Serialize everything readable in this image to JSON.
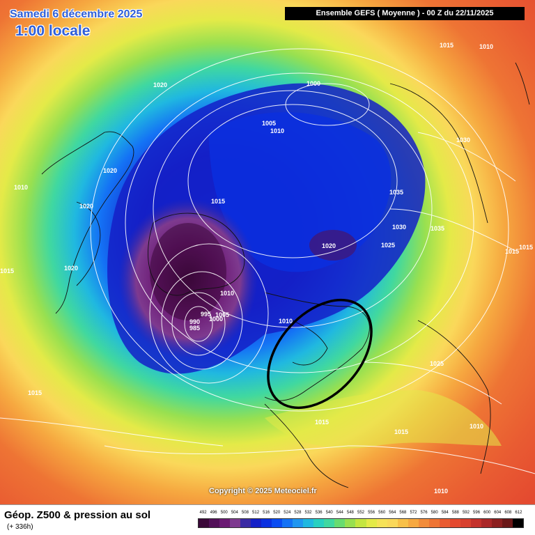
{
  "header": {
    "date_title": "Samedi 6 décembre 2025",
    "time_title": "1:00 locale",
    "model_run": "Ensemble GEFS  ( Moyenne )  -  00 Z du 22/11/2025"
  },
  "footer": {
    "product_title": "Géop. Z500 & pression au sol",
    "lead_time": "(+ 336h)",
    "copyright": "Copyright © 2025 Meteociel.fr"
  },
  "scale": {
    "labels": [
      "492",
      "496",
      "500",
      "504",
      "508",
      "512",
      "516",
      "520",
      "524",
      "528",
      "532",
      "536",
      "540",
      "544",
      "548",
      "552",
      "556",
      "560",
      "564",
      "568",
      "572",
      "576",
      "580",
      "584",
      "588",
      "592",
      "596",
      "600",
      "604",
      "608",
      "612"
    ],
    "colors": [
      "#3a0838",
      "#521058",
      "#6b1a73",
      "#7e3a8f",
      "#3a2aa3",
      "#1420c7",
      "#0a30e0",
      "#0a4cf2",
      "#1472f5",
      "#2096f0",
      "#20b8e0",
      "#28d0c0",
      "#40d8a0",
      "#68dc70",
      "#98e050",
      "#c4e640",
      "#e4ea48",
      "#f6e258",
      "#fad85a",
      "#f8c048",
      "#f6a840",
      "#f28c3a",
      "#ee7434",
      "#e95c32",
      "#e44a30",
      "#d8402e",
      "#c4322c",
      "#aa2828",
      "#8c2020",
      "#6a1818",
      "#000000"
    ]
  },
  "map": {
    "isobars": [
      {
        "label": "1020"
      },
      {
        "label": "1000"
      },
      {
        "label": "1015"
      },
      {
        "label": "1010"
      },
      {
        "label": "1005"
      },
      {
        "label": "1010"
      },
      {
        "label": "1030"
      },
      {
        "label": "1010"
      },
      {
        "label": "1020"
      },
      {
        "label": "1015"
      },
      {
        "label": "1035"
      },
      {
        "label": "1030"
      },
      {
        "label": "1035"
      },
      {
        "label": "1020"
      },
      {
        "label": "1025"
      },
      {
        "label": "1015"
      },
      {
        "label": "1015"
      },
      {
        "label": "1020"
      },
      {
        "label": "1010"
      },
      {
        "label": "995"
      },
      {
        "label": "1005"
      },
      {
        "label": "990"
      },
      {
        "label": "1000"
      },
      {
        "label": "985"
      },
      {
        "label": "1010"
      },
      {
        "label": "1020"
      },
      {
        "label": "1015"
      },
      {
        "label": "1025"
      },
      {
        "label": "1015"
      },
      {
        "label": "1015"
      },
      {
        "label": "1010"
      },
      {
        "label": "1015"
      },
      {
        "label": "1010"
      }
    ],
    "highlight_ellipse_color": "#000000"
  }
}
